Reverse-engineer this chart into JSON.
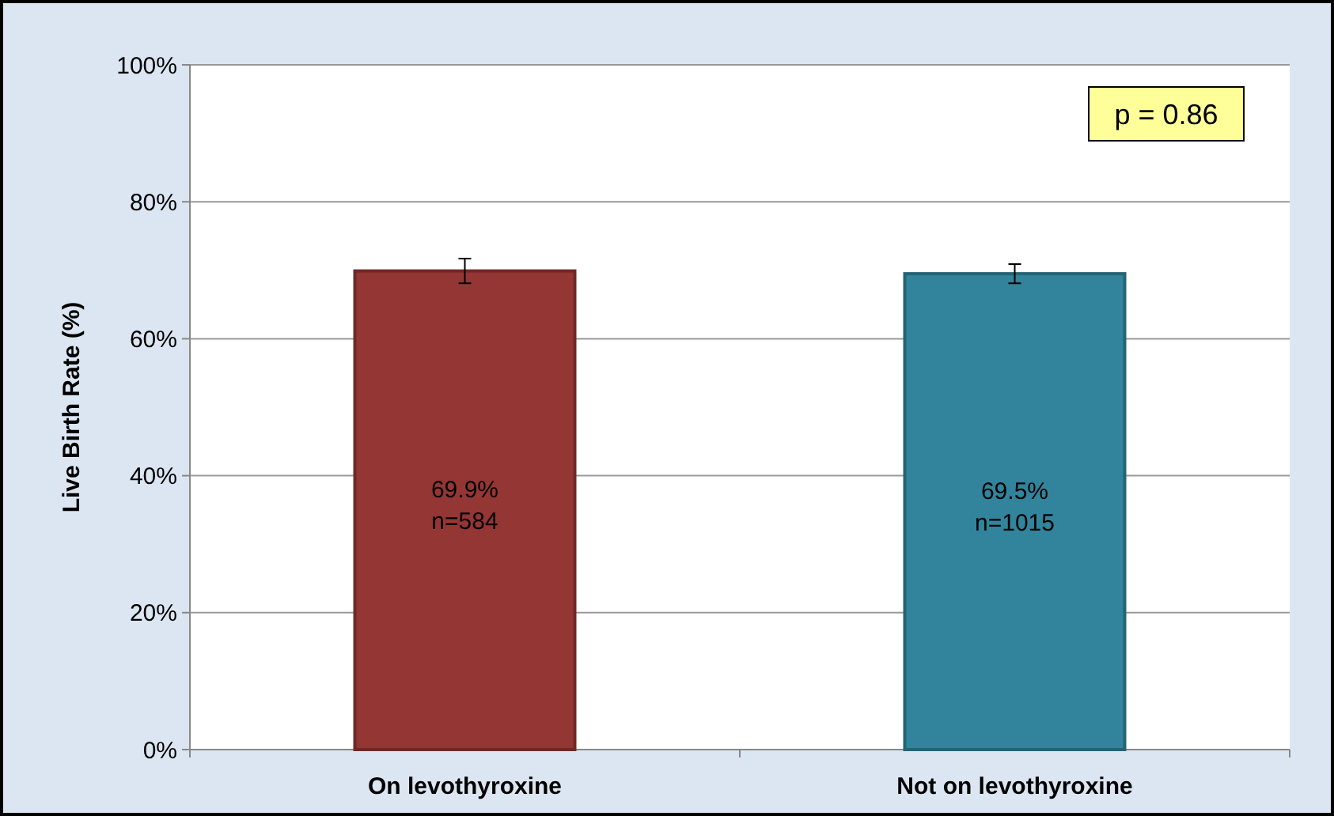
{
  "chart_data": {
    "type": "bar",
    "ylabel": "Live Birth Rate (%)",
    "categories": [
      "On levothyroxine",
      "Not on levothyroxine"
    ],
    "values": [
      69.9,
      69.5
    ],
    "colors": [
      "#943634",
      "#31849b"
    ],
    "errors": [
      1.8,
      1.4
    ],
    "value_labels": [
      "69.9%\nn=584",
      "69.5%\nn=1015"
    ],
    "ylim": [
      0,
      100
    ],
    "yticks": [
      {
        "value": 0,
        "label": "0%"
      },
      {
        "value": 20,
        "label": "20%"
      },
      {
        "value": 40,
        "label": "40%"
      },
      {
        "value": 60,
        "label": "60%"
      },
      {
        "value": 80,
        "label": "80%"
      },
      {
        "value": 100,
        "label": "100%"
      }
    ],
    "grid": "y",
    "annotations": [
      "p = 0.86"
    ]
  }
}
